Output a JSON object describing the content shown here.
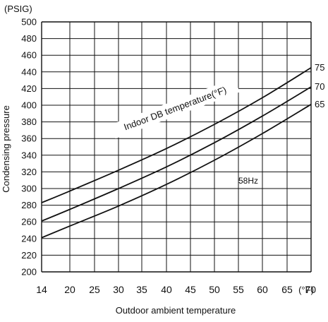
{
  "chart_data": {
    "type": "line",
    "title": "",
    "xlabel": "Outdoor ambient temperature",
    "ylabel": "Condensing pressure",
    "y_unit_label": "(PSIG)",
    "x_unit_label": "(°F)",
    "x_ticks": [
      14,
      20,
      25,
      30,
      35,
      40,
      45,
      50,
      55,
      60,
      65,
      70
    ],
    "x_tick_labels": [
      "14",
      "20",
      "25",
      "30",
      "35",
      "40",
      "45",
      "50",
      "55",
      "60",
      "65",
      "70"
    ],
    "y_ticks": [
      200,
      220,
      240,
      260,
      280,
      300,
      320,
      340,
      360,
      380,
      400,
      420,
      440,
      460,
      480,
      500
    ],
    "y_tick_labels": [
      "200",
      "220",
      "240",
      "260",
      "280",
      "300",
      "320",
      "340",
      "360",
      "380",
      "400",
      "420",
      "440",
      "460",
      "480",
      "500"
    ],
    "xlim": [
      14,
      70
    ],
    "ylim": [
      200,
      500
    ],
    "grid": true,
    "series": [
      {
        "name": "75",
        "x": [
          14,
          20,
          30,
          40,
          50,
          60,
          70
        ],
        "y": [
          283,
          297,
          322,
          348,
          377,
          409,
          445
        ]
      },
      {
        "name": "70",
        "x": [
          14,
          20,
          30,
          40,
          50,
          60,
          70
        ],
        "y": [
          261,
          275,
          300,
          326,
          355,
          387,
          422
        ]
      },
      {
        "name": "65",
        "x": [
          14,
          20,
          30,
          40,
          50,
          60,
          70
        ],
        "y": [
          241,
          255,
          279,
          305,
          334,
          366,
          401
        ]
      }
    ],
    "annotations": [
      {
        "text": "Indoor DB temperature(°F)"
      },
      {
        "text": "58Hz"
      }
    ]
  },
  "colors": {
    "line": "#111111",
    "grid": "#111111",
    "background": "#ffffff"
  }
}
